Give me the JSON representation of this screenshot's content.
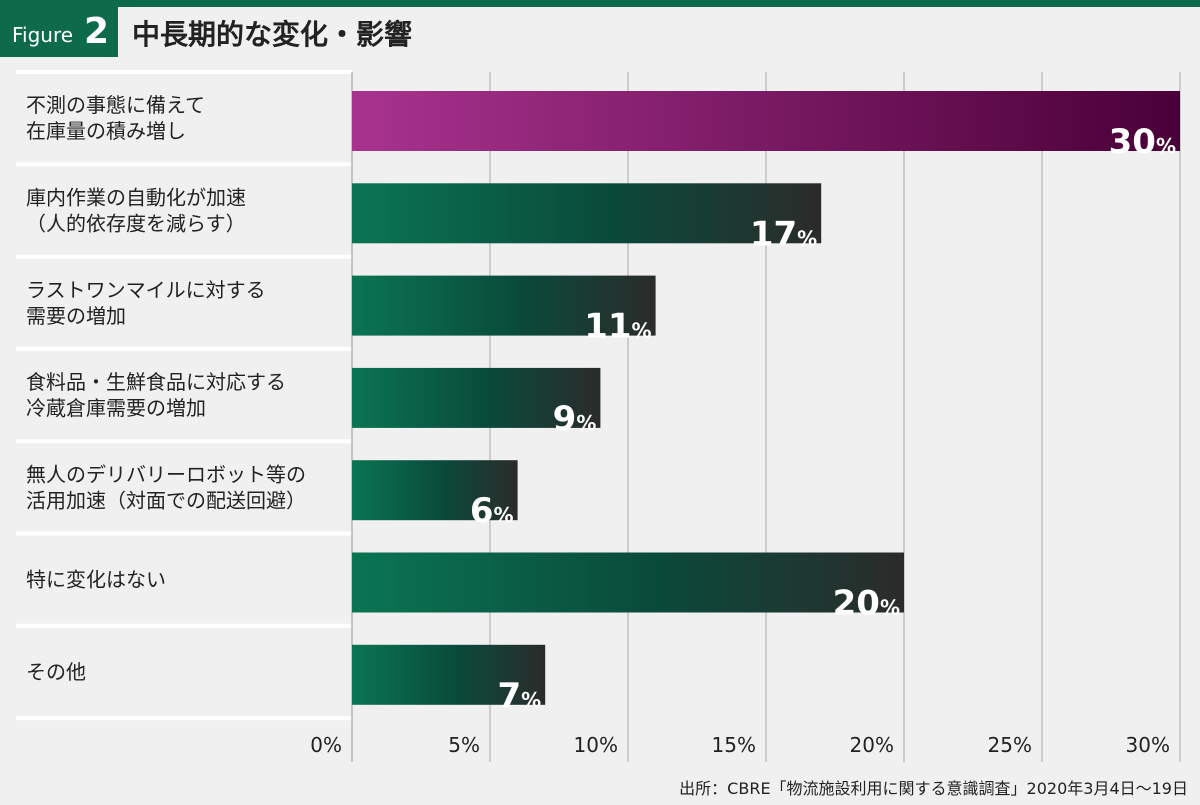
{
  "figure": {
    "label": "Figure",
    "number": "2"
  },
  "title": "中長期的な変化・影響",
  "source": "出所：CBRE「物流施設利用に関する意識調査」2020年3月4日～19日",
  "colors": {
    "highlight_start": "#a8338e",
    "highlight_end": "#4a0038",
    "bar_start": "#0a7552",
    "bar_mid": "#0a4a3a",
    "bar_end": "#2b2b2b",
    "header_green": "#0d6b4b"
  },
  "chart_data": {
    "type": "bar",
    "orientation": "horizontal",
    "unit": "%",
    "categories": [
      [
        "不測の事態に備えて",
        "在庫量の積み増し"
      ],
      [
        "庫内作業の自動化が加速",
        "（人的依存度を減らす）"
      ],
      [
        "ラストワンマイルに対する",
        "需要の増加"
      ],
      [
        "食料品・生鮮食品に対応する",
        "冷蔵倉庫需要の増加"
      ],
      [
        "無人のデリバリーロボット等の",
        "活用加速（対面での配送回避）"
      ],
      [
        "特に変化はない"
      ],
      [
        "その他"
      ]
    ],
    "values": [
      30,
      17,
      11,
      9,
      6,
      20,
      7
    ],
    "highlighted_index": 0,
    "xlim": [
      0,
      30
    ],
    "xticks": [
      0,
      5,
      10,
      15,
      20,
      25,
      30
    ],
    "xtick_labels": [
      "0%",
      "5%",
      "10%",
      "15%",
      "20%",
      "25%",
      "30%"
    ],
    "grid": true
  }
}
